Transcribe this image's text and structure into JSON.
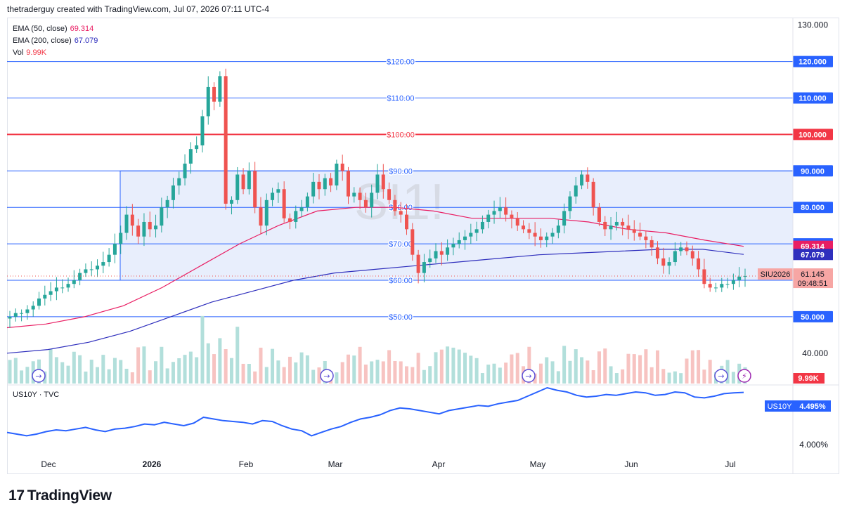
{
  "header": {
    "text": "thetraderguy created with TradingView.com, Jul 07, 2026 07:11 UTC-4"
  },
  "brand": {
    "logo": "17",
    "name": "TradingView"
  },
  "legend": {
    "ema50": {
      "label": "EMA (50, close)",
      "value": "69.314",
      "color": "#e91e63"
    },
    "ema200": {
      "label": "EMA (200, close)",
      "value": "67.079",
      "color": "#2f2fbd"
    },
    "vol": {
      "label": "Vol",
      "value": "9.99K",
      "color": "#f23645"
    },
    "us10y": {
      "label": "US10Y · TVC"
    }
  },
  "watermark": "SI1!",
  "colors": {
    "up": "#26a69a",
    "down": "#ef5350",
    "up_vol": "#b2dfdb",
    "down_vol": "#f7c3c1",
    "hline": "#2962ff",
    "line100": "#f23645",
    "rect_fill": "#e8eefc",
    "us10y": "#2962ff"
  },
  "chart_data": [
    {
      "type": "candlestick",
      "title": "SI1!",
      "ylim": [
        28,
        133
      ],
      "y_ticks": [
        "130.000",
        "120.000",
        "110.000",
        "100.000",
        "90.000",
        "80.000",
        "70.000",
        "60.000",
        "50.000",
        "40.000"
      ],
      "x_ticks": [
        "Dec",
        "2026",
        "Feb",
        "Mar",
        "Apr",
        "May",
        "Jun",
        "Jul"
      ],
      "horizontal_lines": [
        {
          "value": 120,
          "label": "$120.00",
          "axis": "120.000"
        },
        {
          "value": 110,
          "label": "$110.00",
          "axis": "110.000"
        },
        {
          "value": 100,
          "label": "$100.00",
          "axis": "100.000",
          "color": "#f23645"
        },
        {
          "value": 90,
          "label": "$90.00",
          "axis": "90.000"
        },
        {
          "value": 80,
          "label": "$80.00",
          "axis": "80.000"
        },
        {
          "value": 70,
          "label": "$70.00",
          "axis": "70.000"
        },
        {
          "value": 60,
          "label": "$60.00",
          "axis": "60.000"
        },
        {
          "value": 50,
          "label": "$50.00",
          "axis": "50.000"
        }
      ],
      "range_box": {
        "from": "late Dec",
        "to": "Jul 07",
        "low": 60,
        "high": 90
      },
      "closes": [
        50,
        51,
        51,
        52,
        53,
        55,
        56,
        57,
        58,
        58,
        59,
        60,
        62,
        63,
        63,
        64,
        65,
        67,
        70,
        73,
        78,
        75,
        72,
        76,
        74,
        75,
        80,
        82,
        86,
        88,
        92,
        96,
        97,
        105,
        113,
        109,
        116,
        81,
        82,
        89,
        85,
        90,
        80,
        75,
        82,
        84,
        85,
        77,
        76,
        79,
        80,
        83,
        87,
        85,
        88,
        86,
        92,
        90,
        83,
        84,
        82,
        80,
        84,
        89,
        85,
        82,
        79,
        78,
        74,
        67,
        62,
        65,
        66,
        68,
        67,
        69,
        70,
        71,
        72,
        73,
        74,
        76,
        78,
        79,
        80,
        78,
        77,
        75,
        74,
        73,
        72,
        71,
        72,
        73,
        75,
        79,
        83,
        86,
        89,
        87,
        80,
        76,
        74,
        75,
        76,
        75,
        74,
        73,
        72,
        71,
        69,
        66,
        64,
        65,
        68,
        69,
        68,
        66,
        63,
        59,
        58,
        58,
        59,
        59,
        60,
        61,
        61.145
      ],
      "ema50": [
        47,
        48,
        50,
        53,
        58,
        64,
        70,
        75,
        79,
        80,
        80,
        79,
        77,
        77,
        77,
        76,
        74,
        73,
        71,
        69.3
      ],
      "ema200": [
        40,
        41,
        43,
        46,
        50,
        54,
        57,
        60,
        62,
        63,
        64,
        65,
        66,
        67,
        67.5,
        68,
        68.5,
        68.5,
        67.1
      ],
      "current": {
        "symbol": "SIU2026",
        "price": "61.145",
        "countdown": "09:48:51"
      },
      "ema50_last": "69.314",
      "ema200_last": "67.079",
      "volume_last": "9.99K"
    },
    {
      "type": "line",
      "title": "US10Y · TVC",
      "y_ticks": [
        "4.000%"
      ],
      "ylim": [
        3.9,
        4.7
      ],
      "values": [
        4.02,
        4.0,
        3.98,
        4.0,
        4.03,
        4.05,
        4.04,
        4.06,
        4.08,
        4.05,
        4.03,
        4.06,
        4.07,
        4.09,
        4.12,
        4.11,
        4.14,
        4.12,
        4.1,
        4.13,
        4.2,
        4.18,
        4.16,
        4.15,
        4.14,
        4.12,
        4.16,
        4.15,
        4.1,
        4.06,
        4.04,
        3.98,
        4.02,
        4.06,
        4.09,
        4.14,
        4.18,
        4.2,
        4.23,
        4.28,
        4.31,
        4.3,
        4.28,
        4.26,
        4.24,
        4.28,
        4.3,
        4.32,
        4.34,
        4.33,
        4.36,
        4.38,
        4.4,
        4.45,
        4.5,
        4.55,
        4.52,
        4.5,
        4.46,
        4.44,
        4.45,
        4.47,
        4.46,
        4.48,
        4.5,
        4.49,
        4.46,
        4.47,
        4.5,
        4.49,
        4.44,
        4.43,
        4.45,
        4.48,
        4.49,
        4.495
      ],
      "current": {
        "symbol": "US10Y",
        "value": "4.495%"
      }
    }
  ]
}
